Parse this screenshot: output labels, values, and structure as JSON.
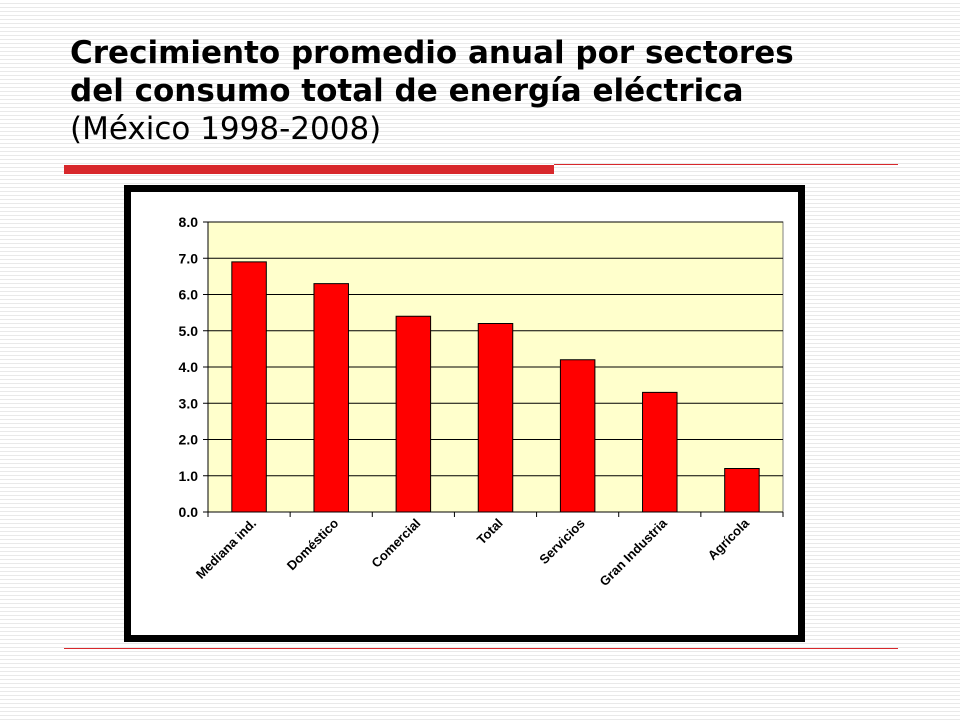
{
  "slide": {
    "title_line1": "Crecimiento promedio anual por sectores",
    "title_line2": "del consumo total de energía eléctrica",
    "title_line3": "(México 1998-2008)"
  },
  "chart_data": {
    "type": "bar",
    "categories": [
      "Mediana ind.",
      "Doméstico",
      "Comercial",
      "Total",
      "Servicios",
      "Gran Industria",
      "Agrícola"
    ],
    "values": [
      6.9,
      6.3,
      5.4,
      5.2,
      4.2,
      3.3,
      1.2
    ],
    "ylim": [
      0,
      8
    ],
    "yticks": [
      "0.0",
      "1.0",
      "2.0",
      "3.0",
      "4.0",
      "5.0",
      "6.0",
      "7.0",
      "8.0"
    ],
    "grid": true,
    "legend": "none",
    "colors": {
      "bar": "#ff0000",
      "bar_stroke": "#000000",
      "plot_background": "#ffffcc",
      "frame": "#000000",
      "accent": "#d8282c"
    }
  }
}
